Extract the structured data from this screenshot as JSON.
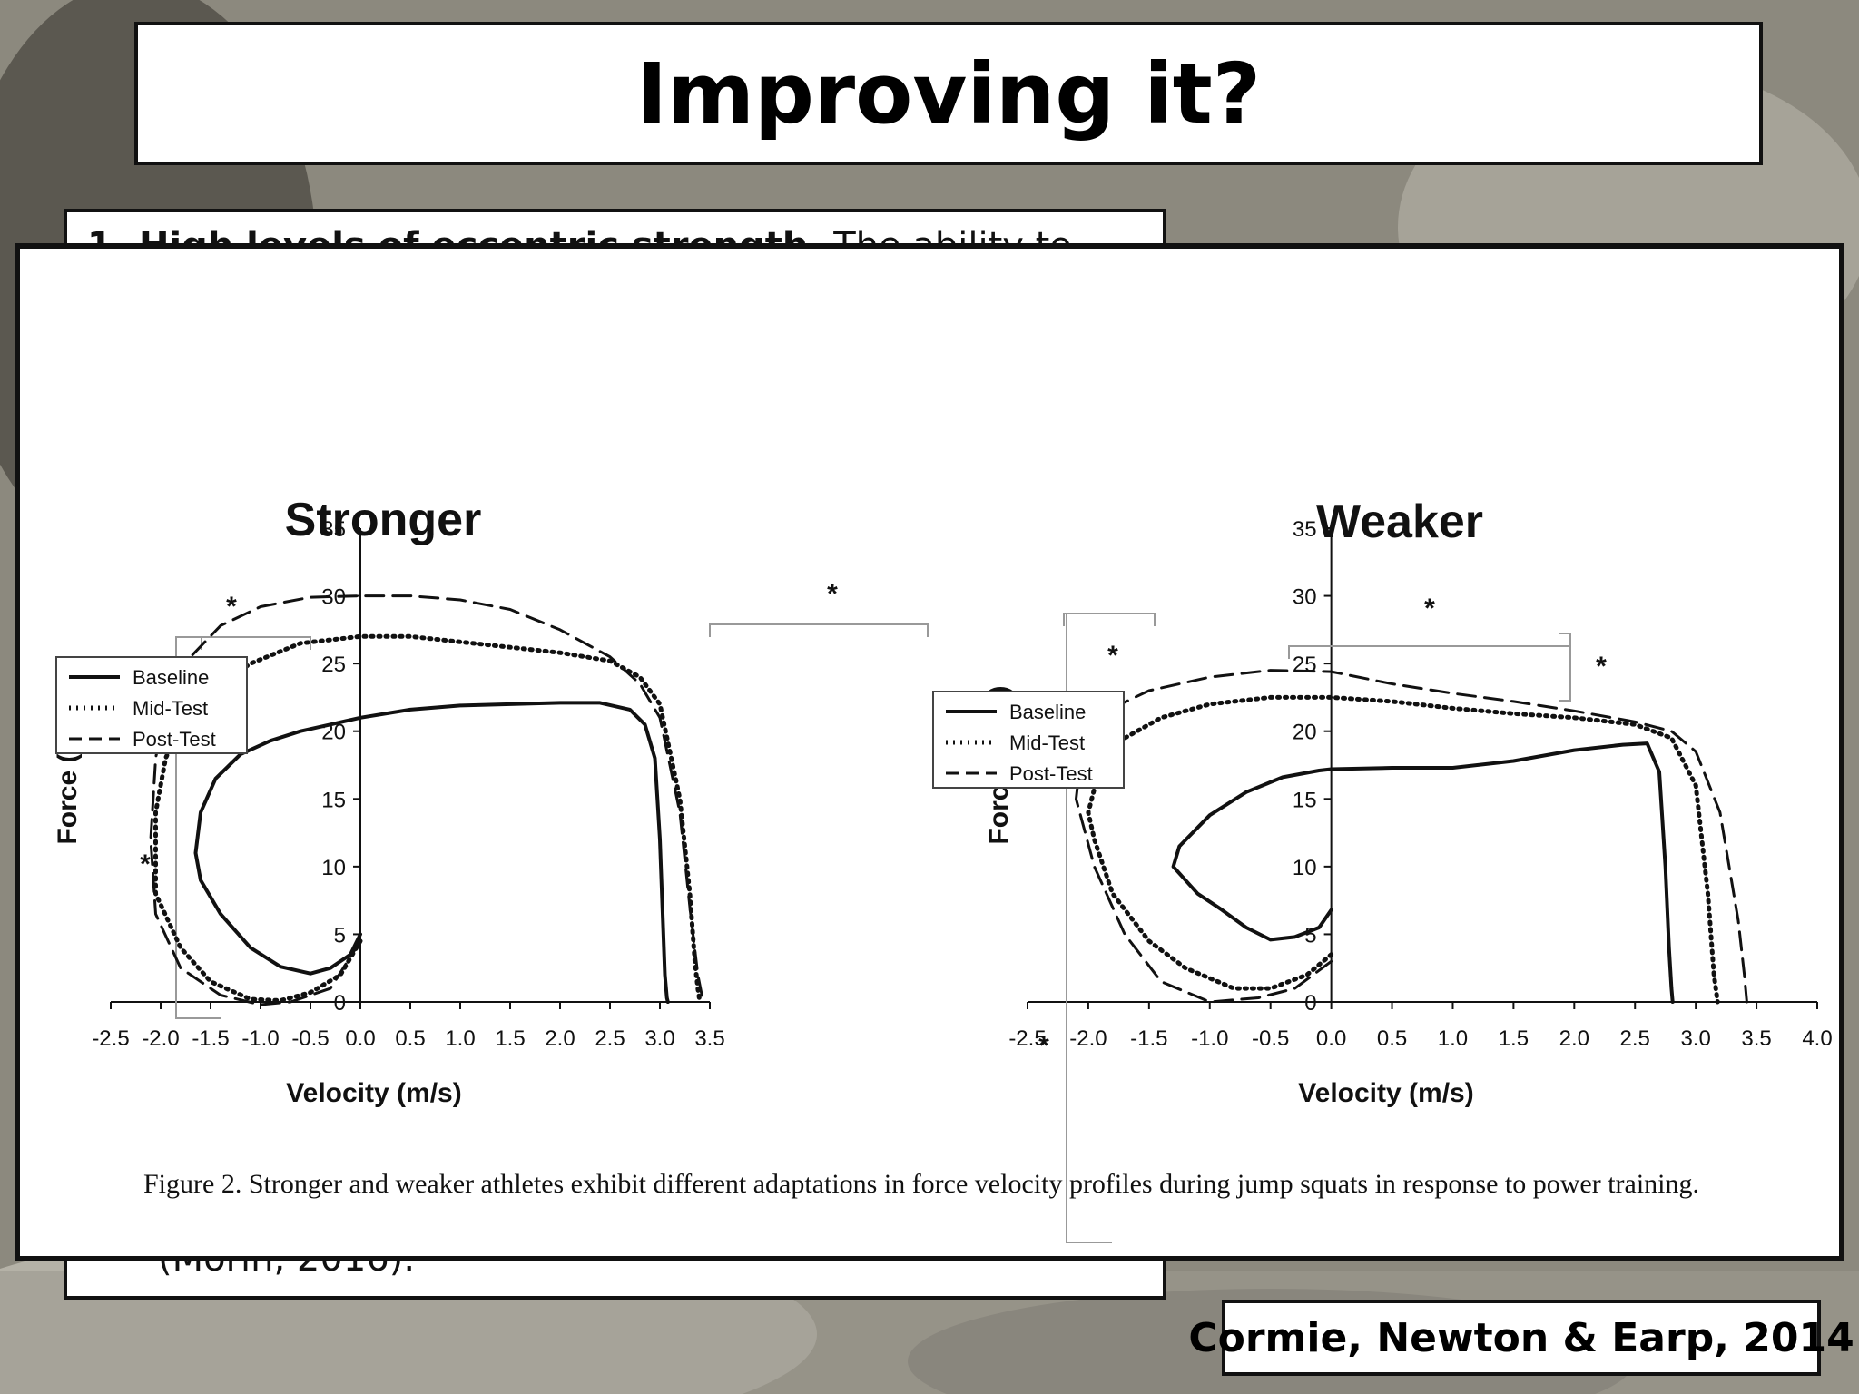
{
  "slide": {
    "title": "Improving it?",
    "text_box": {
      "line1_bold": "1.   High levels of eccentric strength.",
      "line1_rest": " The ability to",
      "line2": "(Morin, 2016)."
    },
    "credit": "Cormie, Newton & Earp, 2014",
    "caption": "Figure 2. Stronger and weaker athletes exhibit different adaptations in force velocity profiles during jump squats in response to power training."
  },
  "chart_data": [
    {
      "type": "line",
      "title": "Stronger",
      "xlabel": "Velocity (m/s)",
      "ylabel": "Force (N/kg)",
      "xlim": [
        -2.5,
        3.5
      ],
      "ylim": [
        0,
        35
      ],
      "x_ticks": [
        "-2.5",
        "-2.0",
        "-1.5",
        "-1.0",
        "-0.5",
        "0.0",
        "0.5",
        "1.0",
        "1.5",
        "2.0",
        "2.5",
        "3.0",
        "3.5"
      ],
      "y_ticks": [
        "0",
        "5",
        "10",
        "15",
        "20",
        "25",
        "30",
        "35"
      ],
      "legend": [
        "Baseline",
        "Mid-Test",
        "Post-Test"
      ],
      "legend_position": "top-left",
      "significance_marks": [
        "*",
        "*",
        "*"
      ],
      "series": [
        {
          "name": "Baseline",
          "style": "solid",
          "x": [
            0.0,
            -0.1,
            -0.3,
            -0.5,
            -0.8,
            -1.1,
            -1.4,
            -1.6,
            -1.65,
            -1.6,
            -1.45,
            -1.2,
            -0.9,
            -0.6,
            -0.3,
            0.0,
            0.5,
            1.0,
            1.5,
            2.0,
            2.4,
            2.7,
            2.85,
            2.95,
            3.0,
            3.03,
            3.05,
            3.07,
            3.08
          ],
          "y": [
            5.0,
            3.5,
            2.5,
            2.1,
            2.6,
            4.0,
            6.5,
            9.0,
            11.0,
            14.0,
            16.5,
            18.3,
            19.3,
            20.0,
            20.5,
            21.0,
            21.6,
            21.9,
            22.0,
            22.1,
            22.1,
            21.6,
            20.5,
            18.0,
            12.0,
            6.0,
            2.0,
            0.3,
            0.0
          ]
        },
        {
          "name": "Mid-Test",
          "style": "dotted",
          "x": [
            0.0,
            -0.2,
            -0.5,
            -0.8,
            -1.1,
            -1.5,
            -1.8,
            -2.05,
            -2.05,
            -1.95,
            -1.8,
            -1.5,
            -1.1,
            -0.6,
            0.0,
            0.5,
            1.0,
            1.5,
            2.0,
            2.5,
            2.8,
            3.0,
            3.2,
            3.3,
            3.35,
            3.38,
            3.4
          ],
          "y": [
            4.5,
            2.0,
            0.7,
            0.1,
            0.2,
            1.5,
            4.0,
            8.0,
            14.0,
            18.0,
            20.5,
            23.0,
            25.0,
            26.5,
            27.0,
            27.0,
            26.6,
            26.2,
            25.8,
            25.2,
            24.0,
            22.0,
            15.0,
            8.0,
            3.0,
            1.0,
            0.0
          ]
        },
        {
          "name": "Post-Test",
          "style": "dashed",
          "x": [
            0.0,
            -0.3,
            -0.7,
            -1.0,
            -1.4,
            -1.8,
            -2.05,
            -2.1,
            -2.05,
            -1.95,
            -1.7,
            -1.4,
            -1.0,
            -0.5,
            0.0,
            0.5,
            1.0,
            1.5,
            2.0,
            2.5,
            2.8,
            3.0,
            3.2,
            3.3,
            3.38,
            3.42,
            3.44
          ],
          "y": [
            4.5,
            1.0,
            0.0,
            -0.2,
            0.5,
            2.5,
            6.5,
            12.0,
            18.0,
            22.0,
            25.5,
            27.8,
            29.2,
            29.9,
            30.0,
            30.0,
            29.7,
            29.0,
            27.5,
            25.5,
            23.5,
            21.0,
            14.0,
            7.0,
            2.0,
            0.5,
            0.0
          ]
        }
      ]
    },
    {
      "type": "line",
      "title": "Weaker",
      "xlabel": "Velocity (m/s)",
      "ylabel": "Force (N/kg)",
      "xlim": [
        -2.5,
        4.0
      ],
      "ylim": [
        0,
        35
      ],
      "x_ticks": [
        "-2.5",
        "-2.0",
        "-1.5",
        "-1.0",
        "-0.5",
        "0.0",
        "0.5",
        "1.0",
        "1.5",
        "2.0",
        "2.5",
        "3.0",
        "3.5",
        "4.0"
      ],
      "y_ticks": [
        "0",
        "5",
        "10",
        "15",
        "20",
        "25",
        "30",
        "35"
      ],
      "legend": [
        "Baseline",
        "Mid-Test",
        "Post-Test"
      ],
      "legend_position": "top-center",
      "significance_marks": [
        "*",
        "*",
        "*",
        "*"
      ],
      "series": [
        {
          "name": "Baseline",
          "style": "solid",
          "x": [
            0.0,
            -0.1,
            -0.3,
            -0.5,
            -0.7,
            -0.9,
            -1.1,
            -1.3,
            -1.25,
            -1.0,
            -0.7,
            -0.4,
            -0.1,
            0.0,
            0.5,
            1.0,
            1.5,
            2.0,
            2.4,
            2.6,
            2.7,
            2.75,
            2.78,
            2.8,
            2.81
          ],
          "y": [
            6.8,
            5.5,
            4.8,
            4.6,
            5.5,
            6.8,
            8.0,
            10.0,
            11.5,
            13.8,
            15.5,
            16.6,
            17.1,
            17.2,
            17.3,
            17.3,
            17.8,
            18.6,
            19.0,
            19.1,
            17.0,
            10.0,
            4.0,
            1.0,
            0.0
          ]
        },
        {
          "name": "Mid-Test",
          "style": "dotted",
          "x": [
            0.0,
            -0.2,
            -0.5,
            -0.8,
            -1.2,
            -1.5,
            -1.8,
            -1.95,
            -2.0,
            -1.9,
            -1.7,
            -1.4,
            -1.0,
            -0.5,
            0.0,
            0.5,
            1.0,
            1.5,
            2.0,
            2.5,
            2.8,
            3.0,
            3.1,
            3.15,
            3.18
          ],
          "y": [
            3.5,
            2.0,
            1.0,
            1.0,
            2.5,
            4.5,
            8.0,
            12.0,
            14.0,
            17.5,
            19.5,
            21.0,
            22.0,
            22.5,
            22.5,
            22.2,
            21.7,
            21.3,
            21.0,
            20.5,
            19.5,
            16.0,
            8.0,
            2.0,
            0.0
          ]
        },
        {
          "name": "Post-Test",
          "style": "dashed",
          "x": [
            0.0,
            -0.3,
            -0.6,
            -1.0,
            -1.4,
            -1.7,
            -1.95,
            -2.1,
            -2.05,
            -1.85,
            -1.5,
            -1.0,
            -0.5,
            0.0,
            0.5,
            1.0,
            1.5,
            2.0,
            2.5,
            2.8,
            3.0,
            3.2,
            3.35,
            3.4,
            3.42
          ],
          "y": [
            3.0,
            1.0,
            0.3,
            0.0,
            1.5,
            5.0,
            10.0,
            15.0,
            19.0,
            21.5,
            23.0,
            24.0,
            24.5,
            24.4,
            23.5,
            22.8,
            22.2,
            21.5,
            20.7,
            20.0,
            18.5,
            14.0,
            6.0,
            2.0,
            0.0
          ]
        }
      ]
    }
  ]
}
